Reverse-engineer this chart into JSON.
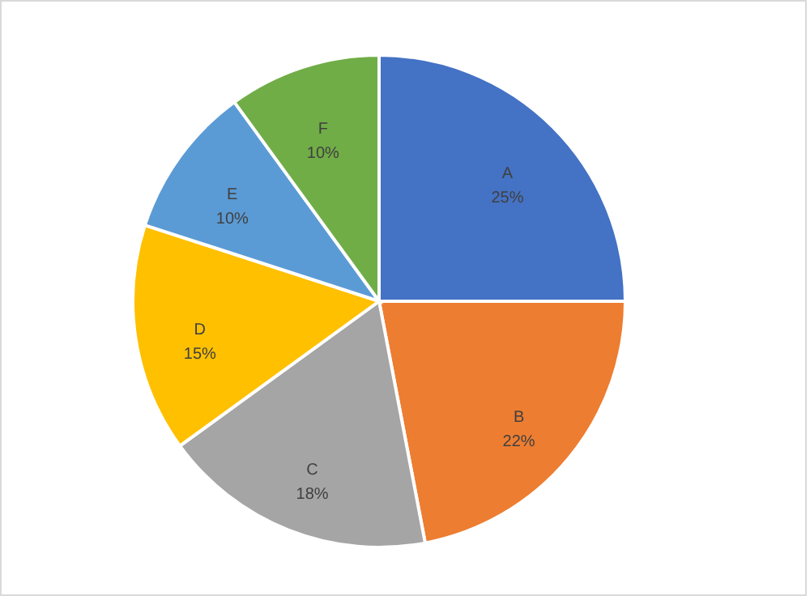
{
  "chart_data": {
    "type": "pie",
    "categories": [
      "A",
      "B",
      "C",
      "D",
      "E",
      "F"
    ],
    "values": [
      25,
      22,
      18,
      15,
      10,
      10
    ],
    "colors": [
      "#4472c4",
      "#ed7d31",
      "#a5a5a5",
      "#ffc000",
      "#5b9bd5",
      "#70ad47"
    ],
    "value_labels": [
      "25%",
      "22%",
      "18%",
      "15%",
      "10%",
      "10%"
    ]
  }
}
